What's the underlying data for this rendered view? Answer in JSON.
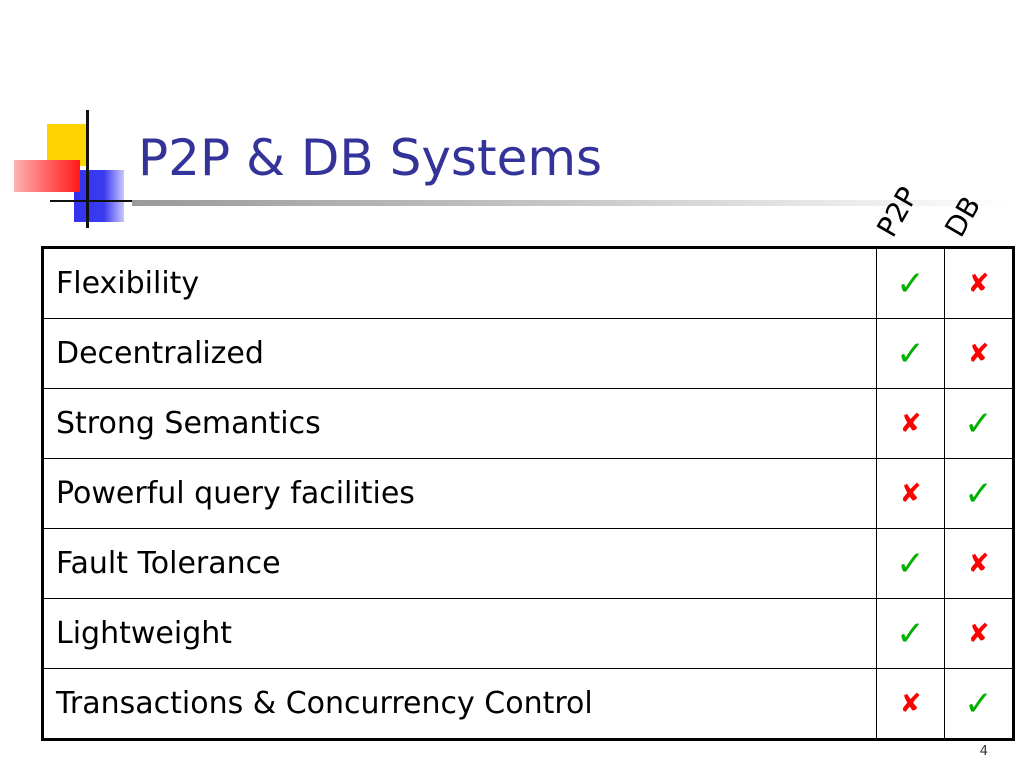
{
  "slide": {
    "title": "P2P & DB Systems",
    "page_number": "4"
  },
  "columns": [
    "P2P",
    "DB"
  ],
  "rows": [
    {
      "feature": "Flexibility",
      "p2p": "✓",
      "db": "✘"
    },
    {
      "feature": "Decentralized",
      "p2p": "✓",
      "db": "✘"
    },
    {
      "feature": "Strong Semantics",
      "p2p": "✘",
      "db": "✓"
    },
    {
      "feature": "Powerful query facilities",
      "p2p": "✘",
      "db": "✓"
    },
    {
      "feature": "Fault Tolerance",
      "p2p": "✓",
      "db": "✘"
    },
    {
      "feature": "Lightweight",
      "p2p": "✓",
      "db": "✘"
    },
    {
      "feature": "Transactions & Concurrency Control",
      "p2p": "✘",
      "db": "✓"
    }
  ],
  "colors": {
    "title": "#333399",
    "check": "#00b000",
    "cross": "#ff0000"
  }
}
